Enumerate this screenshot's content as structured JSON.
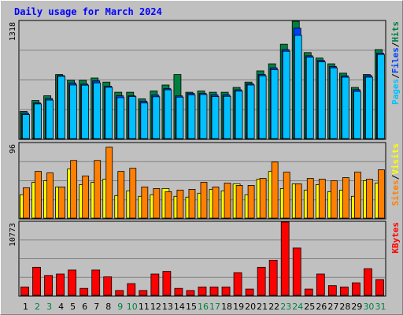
{
  "title": "Daily usage for March 2024",
  "colors": {
    "background": "#c0c0c0",
    "panel": "#c0c0c0",
    "title": "#0000ff",
    "hits": "#008040",
    "files": "#0040ff",
    "pages": "#00c0ff",
    "visits": "#ffff00",
    "sites": "#ff8000",
    "kbytes": "#ff0000",
    "weekend_label": "#008040",
    "weekday_label": "#000000"
  },
  "chart_data": [
    {
      "type": "bar",
      "name": "hits-files-pages",
      "ymax_label": "1318",
      "ylim": [
        0,
        1318
      ],
      "legend": [
        "Pages",
        "/",
        "Files",
        "/",
        "Hits"
      ],
      "categories": [
        "1",
        "2",
        "3",
        "4",
        "5",
        "6",
        "7",
        "8",
        "9",
        "10",
        "11",
        "12",
        "13",
        "14",
        "15",
        "16",
        "17",
        "18",
        "19",
        "20",
        "21",
        "22",
        "23",
        "24",
        "25",
        "26",
        "27",
        "28",
        "29",
        "30",
        "31"
      ],
      "series": [
        {
          "name": "Hits",
          "values": [
            305,
            428,
            481,
            720,
            655,
            655,
            681,
            635,
            521,
            521,
            446,
            535,
            602,
            720,
            521,
            535,
            521,
            521,
            575,
            635,
            761,
            840,
            1060,
            1318,
            966,
            905,
            840,
            735,
            575,
            720,
            1000
          ]
        },
        {
          "name": "Files",
          "values": [
            285,
            400,
            450,
            708,
            625,
            612,
            648,
            588,
            481,
            481,
            421,
            488,
            561,
            480,
            508,
            508,
            490,
            490,
            548,
            615,
            720,
            795,
            1000,
            1240,
            930,
            878,
            810,
            705,
            550,
            708,
            960
          ]
        },
        {
          "name": "Pages",
          "values": [
            270,
            390,
            433,
            700,
            602,
            600,
            626,
            576,
            460,
            472,
            400,
            470,
            548,
            466,
            490,
            495,
            472,
            475,
            533,
            602,
            705,
            775,
            980,
            1160,
            915,
            862,
            795,
            690,
            530,
            690,
            945
          ]
        }
      ]
    },
    {
      "type": "bar",
      "name": "visits-sites",
      "ymax_label": "96",
      "ylim": [
        0,
        96
      ],
      "legend": [
        "Sites",
        "/",
        "Visits"
      ],
      "categories": [
        "1",
        "2",
        "3",
        "4",
        "5",
        "6",
        "7",
        "8",
        "9",
        "10",
        "11",
        "12",
        "13",
        "14",
        "15",
        "16",
        "17",
        "18",
        "19",
        "20",
        "21",
        "22",
        "23",
        "24",
        "25",
        "26",
        "27",
        "28",
        "29",
        "30",
        "31"
      ],
      "series": [
        {
          "name": "Visits",
          "values": [
            30,
            46,
            48,
            40,
            63,
            43,
            46,
            50,
            29,
            35,
            28,
            30,
            38,
            28,
            27,
            32,
            37,
            35,
            44,
            30,
            50,
            60,
            38,
            44,
            36,
            43,
            34,
            36,
            28,
            48,
            45
          ]
        },
        {
          "name": "Sites",
          "values": [
            39,
            60,
            58,
            40,
            74,
            54,
            74,
            91,
            60,
            64,
            40,
            38,
            34,
            36,
            37,
            46,
            40,
            45,
            42,
            42,
            51,
            72,
            59,
            44,
            51,
            50,
            48,
            52,
            59,
            50,
            62
          ]
        }
      ]
    },
    {
      "type": "bar",
      "name": "kbytes",
      "ymax_label": "10773",
      "ylim": [
        0,
        10773
      ],
      "legend": [
        "KBytes"
      ],
      "categories": [
        "1",
        "2",
        "3",
        "4",
        "5",
        "6",
        "7",
        "8",
        "9",
        "10",
        "11",
        "12",
        "13",
        "14",
        "15",
        "16",
        "17",
        "18",
        "19",
        "20",
        "21",
        "22",
        "23",
        "24",
        "25",
        "26",
        "27",
        "28",
        "29",
        "30",
        "31"
      ],
      "series": [
        {
          "name": "KBytes",
          "values": [
            1230,
            4130,
            2920,
            3130,
            3720,
            1020,
            3720,
            2720,
            710,
            1720,
            710,
            3130,
            3520,
            1020,
            710,
            1230,
            1230,
            1230,
            3330,
            920,
            4130,
            5160,
            10773,
            6960,
            920,
            3130,
            1430,
            1230,
            1840,
            3920,
            2320
          ]
        }
      ]
    }
  ],
  "day_labels": [
    "1",
    "2",
    "3",
    "4",
    "5",
    "6",
    "7",
    "8",
    "9",
    "10",
    "11",
    "12",
    "13",
    "14",
    "15",
    "16",
    "17",
    "18",
    "19",
    "20",
    "21",
    "22",
    "23",
    "24",
    "25",
    "26",
    "27",
    "28",
    "29",
    "30",
    "31"
  ],
  "weekend_days": [
    2,
    3,
    9,
    10,
    16,
    17,
    23,
    24,
    30,
    31
  ]
}
